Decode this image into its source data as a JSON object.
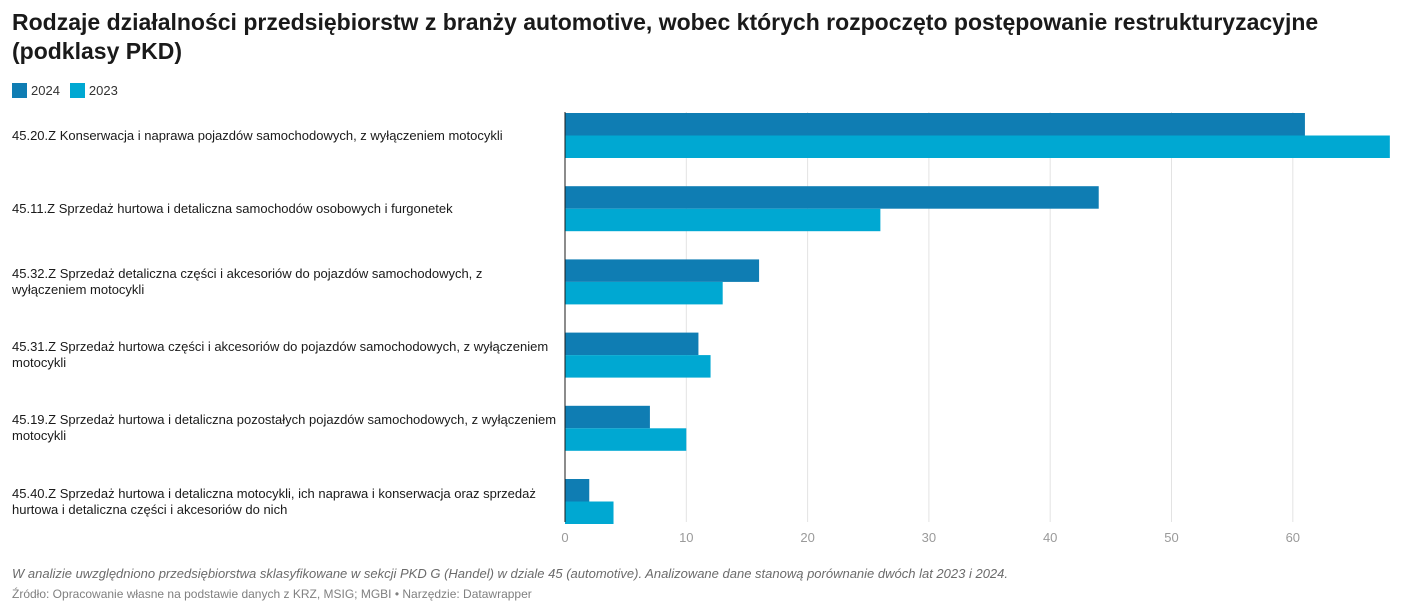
{
  "chart_data": {
    "type": "bar",
    "orientation": "horizontal",
    "title": "Rodzaje działalności przedsiębiorstw z branży automotive, wobec których rozpoczęto postępowanie restrukturyzacyjne (podklasy PKD)",
    "categories": [
      "45.20.Z Konserwacja i naprawa pojazdów samochodowych, z wyłączeniem motocykli",
      "45.11.Z Sprzedaż hurtowa i detaliczna samochodów osobowych i furgonetek",
      "45.32.Z Sprzedaż detaliczna części i akcesoriów do pojazdów samochodowych, z wyłączeniem motocykli",
      "45.31.Z Sprzedaż hurtowa części i akcesoriów do pojazdów samochodowych, z wyłączeniem motocykli",
      "45.19.Z Sprzedaż hurtowa i detaliczna pozostałych pojazdów samochodowych, z wyłączeniem motocykli",
      "45.40.Z Sprzedaż hurtowa i detaliczna motocykli, ich naprawa i konserwacja oraz sprzedaż hurtowa i detaliczna części i akcesoriów do nich"
    ],
    "series": [
      {
        "name": "2024",
        "color": "#0f7db3",
        "values": [
          61,
          44,
          16,
          11,
          7,
          2
        ]
      },
      {
        "name": "2023",
        "color": "#00a8d2",
        "values": [
          68,
          26,
          13,
          12,
          10,
          4
        ]
      }
    ],
    "xlim": [
      0,
      68
    ],
    "xticks": [
      "0",
      "10",
      "20",
      "30",
      "40",
      "50",
      "60"
    ],
    "grid": true,
    "legend_position": "top-left"
  },
  "footer": {
    "note": "W analizie uwzględniono przedsiębiorstwa sklasyfikowane w sekcji PKD G (Handel) w dziale 45 (automotive). Analizowane dane stanową porównanie dwóch lat 2023 i 2024.",
    "source": "Źródło: Opracowanie własne na podstawie danych z KRZ, MSIG; MGBI • Narzędzie: Datawrapper"
  }
}
